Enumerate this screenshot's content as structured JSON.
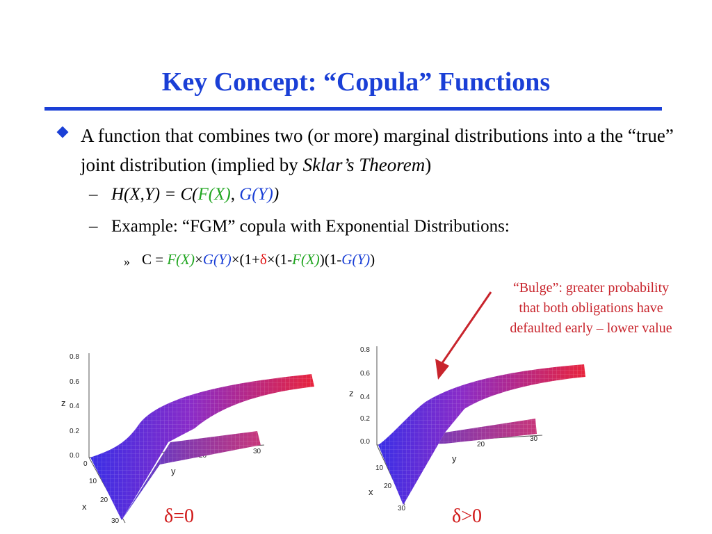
{
  "slide": {
    "title": "Key Concept: “Copula” Functions",
    "bullet": {
      "text_part1": "A function that combines two (or more) marginal distributions into a the “true” joint distribution (implied by ",
      "text_italic": "Sklar’s Theorem",
      "text_part2": ")"
    },
    "sub1": {
      "dash": "–",
      "pre": "H(X,Y) = C(",
      "fx": "F(X)",
      "comma": ", ",
      "gy": "G(Y)",
      "post": ")"
    },
    "sub2": {
      "dash": "–",
      "text": "Example: “FGM” copula with Exponential Distributions:"
    },
    "sub3": {
      "mark": "»",
      "c": "C = ",
      "fx": "F(X)",
      "times1": "×",
      "gy": "G(Y)",
      "times2": "×(1+",
      "delta": "δ",
      "times3": "×(1-",
      "fx2": "F(X)",
      "mid": ")(1-",
      "gy2": "G(Y)",
      "end": ")"
    },
    "callout": {
      "line1": "“Bulge”:  greater probability",
      "line2": "that both obligations have",
      "line3": "defaulted early – lower value"
    },
    "colors": {
      "title": "#1a3fd6",
      "green": "#1fa51f",
      "red": "#e01010",
      "callout": "#c8242c"
    }
  },
  "plots": [
    {
      "label": "δ=0",
      "z_axis": {
        "label": "z",
        "ticks": [
          "0.8",
          "0.6",
          "0.4",
          "0.2",
          "0.0"
        ]
      },
      "x_axis": {
        "label": "x",
        "ticks": [
          "0",
          "10",
          "20",
          "30"
        ]
      },
      "y_axis": {
        "label": "y",
        "ticks": [
          "20",
          "30"
        ]
      }
    },
    {
      "label": "δ>0",
      "z_axis": {
        "label": "z",
        "ticks": [
          "0.8",
          "0.6",
          "0.4",
          "0.2",
          "0.0"
        ]
      },
      "x_axis": {
        "label": "x",
        "ticks": [
          "10",
          "20",
          "30"
        ]
      },
      "y_axis": {
        "label": "y",
        "ticks": [
          "20",
          "30"
        ]
      }
    }
  ]
}
